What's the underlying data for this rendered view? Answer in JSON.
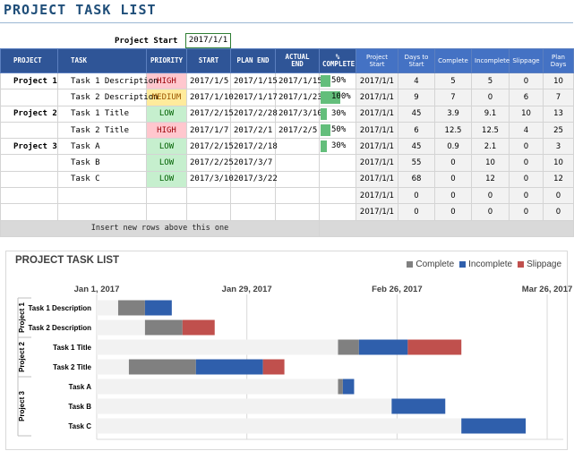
{
  "title": "PROJECT TASK LIST",
  "project_start": {
    "label": "Project Start",
    "value": "2017/1/1"
  },
  "columns": {
    "project": "PROJECT",
    "task": "TASK",
    "priority": "PRIORITY",
    "start": "START",
    "plan_end": "PLAN END",
    "actual_end": "ACTUAL END",
    "pct_complete": "% COMPLETE",
    "project_start": "Project Start",
    "days_to_start": "Days to Start",
    "complete": "Complete",
    "incomplete": "Incomplete",
    "slippage": "Slippage",
    "plan_days": "Plan Days"
  },
  "rows": [
    {
      "project": "Project 1",
      "task": "Task 1 Description",
      "priority": "HIGH",
      "priority_level": "high",
      "start": "2017/1/5",
      "plan_end": "2017/1/15",
      "actual_end": "2017/1/15",
      "pct": "50%",
      "pct_value": 50,
      "project_start": "2017/1/1",
      "days_to_start": "4",
      "complete": "5",
      "incomplete": "5",
      "slippage": "0",
      "plan_days": "10"
    },
    {
      "project": "",
      "task": "Task 2 Description",
      "priority": "MEDIUM",
      "priority_level": "medium",
      "start": "2017/1/10",
      "plan_end": "2017/1/17",
      "actual_end": "2017/1/23",
      "pct": "100%",
      "pct_value": 100,
      "project_start": "2017/1/1",
      "days_to_start": "9",
      "complete": "7",
      "incomplete": "0",
      "slippage": "6",
      "plan_days": "7"
    },
    {
      "project": "Project 2",
      "task": "Task 1 Title",
      "priority": "LOW",
      "priority_level": "low",
      "start": "2017/2/15",
      "plan_end": "2017/2/28",
      "actual_end": "2017/3/10",
      "pct": "30%",
      "pct_value": 30,
      "project_start": "2017/1/1",
      "days_to_start": "45",
      "complete": "3.9",
      "incomplete": "9.1",
      "slippage": "10",
      "plan_days": "13"
    },
    {
      "project": "",
      "task": "Task 2 Title",
      "priority": "HIGH",
      "priority_level": "high",
      "start": "2017/1/7",
      "plan_end": "2017/2/1",
      "actual_end": "2017/2/5",
      "pct": "50%",
      "pct_value": 50,
      "project_start": "2017/1/1",
      "days_to_start": "6",
      "complete": "12.5",
      "incomplete": "12.5",
      "slippage": "4",
      "plan_days": "25"
    },
    {
      "project": "Project 3",
      "task": "Task A",
      "priority": "LOW",
      "priority_level": "low",
      "start": "2017/2/15",
      "plan_end": "2017/2/18",
      "actual_end": "",
      "pct": "30%",
      "pct_value": 30,
      "project_start": "2017/1/1",
      "days_to_start": "45",
      "complete": "0.9",
      "incomplete": "2.1",
      "slippage": "0",
      "plan_days": "3"
    },
    {
      "project": "",
      "task": "Task B",
      "priority": "LOW",
      "priority_level": "low",
      "start": "2017/2/25",
      "plan_end": "2017/3/7",
      "actual_end": "",
      "pct": "",
      "pct_value": 0,
      "project_start": "2017/1/1",
      "days_to_start": "55",
      "complete": "0",
      "incomplete": "10",
      "slippage": "0",
      "plan_days": "10"
    },
    {
      "project": "",
      "task": "Task C",
      "priority": "LOW",
      "priority_level": "low",
      "start": "2017/3/10",
      "plan_end": "2017/3/22",
      "actual_end": "",
      "pct": "",
      "pct_value": 0,
      "project_start": "2017/1/1",
      "days_to_start": "68",
      "complete": "0",
      "incomplete": "12",
      "slippage": "0",
      "plan_days": "12"
    },
    {
      "project": "",
      "task": "",
      "priority": "",
      "priority_level": "",
      "start": "",
      "plan_end": "",
      "actual_end": "",
      "pct": "",
      "pct_value": 0,
      "project_start": "2017/1/1",
      "days_to_start": "0",
      "complete": "0",
      "incomplete": "0",
      "slippage": "0",
      "plan_days": "0"
    },
    {
      "project": "",
      "task": "",
      "priority": "",
      "priority_level": "",
      "start": "",
      "plan_end": "",
      "actual_end": "",
      "pct": "",
      "pct_value": 0,
      "project_start": "2017/1/1",
      "days_to_start": "0",
      "complete": "0",
      "incomplete": "0",
      "slippage": "0",
      "plan_days": "0"
    }
  ],
  "insert_note": "Insert new rows above this one",
  "chart_data": {
    "type": "bar",
    "orientation": "horizontal-stacked",
    "title": "PROJECT TASK LIST",
    "legend_position": "top-right",
    "x_ticks": [
      "Jan 1, 2017",
      "Jan 29, 2017",
      "Feb 26, 2017",
      "Mar 26, 2017"
    ],
    "x_tick_days": [
      0,
      28,
      56,
      84
    ],
    "xlim": [
      0,
      87
    ],
    "groups": [
      {
        "label": "Project 1",
        "tasks": [
          "Task 1 Description",
          "Task 2 Description"
        ]
      },
      {
        "label": "Project 2",
        "tasks": [
          "Task 1 Title",
          "Task 2 Title"
        ]
      },
      {
        "label": "Project 3",
        "tasks": [
          "Task A",
          "Task B",
          "Task C"
        ]
      }
    ],
    "categories": [
      "Task 1 Description",
      "Task 2 Description",
      "Task 1 Title",
      "Task 2 Title",
      "Task A",
      "Task B",
      "Task C"
    ],
    "series": [
      {
        "name": "Days to Start",
        "color": "#f2f2f2",
        "values": [
          4,
          9,
          45,
          6,
          45,
          55,
          68
        ]
      },
      {
        "name": "Complete",
        "color": "#808080",
        "values": [
          5,
          7,
          3.9,
          12.5,
          0.9,
          0,
          0
        ]
      },
      {
        "name": "Incomplete",
        "color": "#2f5fac",
        "values": [
          5,
          0,
          9.1,
          12.5,
          2.1,
          10,
          12
        ]
      },
      {
        "name": "Slippage",
        "color": "#c0504d",
        "values": [
          0,
          6,
          10,
          4,
          0,
          0,
          0
        ]
      }
    ],
    "legend": [
      "Complete",
      "Incomplete",
      "Slippage"
    ]
  },
  "colors": {
    "header": "#2f5597",
    "header_light": "#4472c4",
    "complete": "#808080",
    "incomplete": "#2f5fac",
    "slippage": "#c0504d",
    "title": "#1f4e79"
  }
}
